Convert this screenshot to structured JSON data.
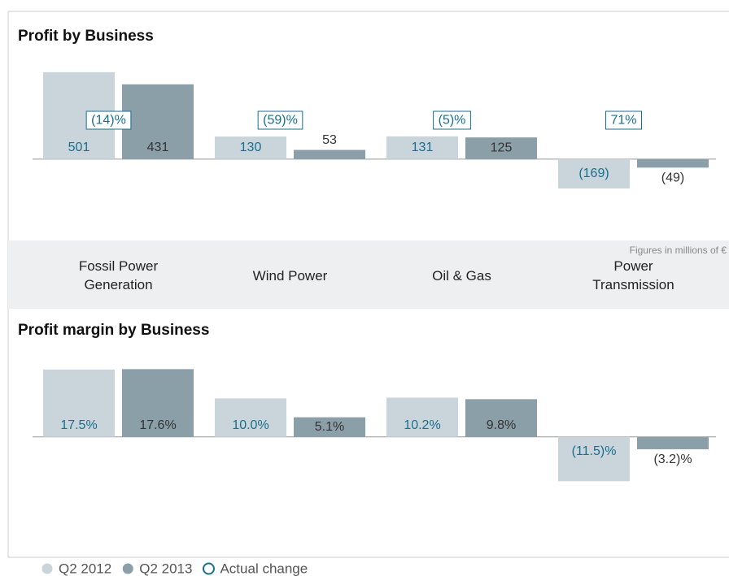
{
  "chart_data": [
    {
      "type": "bar",
      "title": "Profit by Business",
      "annotation": "Figures in millions of €",
      "categories": [
        "Fossil Power Generation",
        "Wind Power",
        "Oil & Gas",
        "Power Transmission"
      ],
      "ylim": [
        -450,
        650
      ],
      "series": [
        {
          "name": "Q2 2012",
          "color": "#c9d5db",
          "label_color": "#1a6e8e",
          "values": [
            501,
            130,
            131,
            -169
          ],
          "value_labels": [
            "501",
            "130",
            "131",
            "(169)"
          ]
        },
        {
          "name": "Q2 2013",
          "color": "#8a9fa8",
          "label_color": "#333333",
          "values": [
            431,
            53,
            125,
            -49
          ],
          "value_labels": [
            "431",
            "53",
            "125",
            "(49)"
          ]
        }
      ],
      "changes": {
        "name": "Actual change",
        "color": "#1a6e8e",
        "values": [
          -14,
          -59,
          -5,
          71
        ],
        "value_labels": [
          "(14)%",
          "(59)%",
          "(5)%",
          "71%"
        ]
      }
    },
    {
      "type": "bar",
      "title": "Profit margin by Business",
      "ylim": [
        -30,
        20
      ],
      "series": [
        {
          "color": "#c9d5db",
          "label_color": "#1a6e8e",
          "values": [
            17.5,
            10.0,
            10.2,
            -11.5
          ],
          "value_labels": [
            "17.5%",
            "10.0%",
            "10.2%",
            "(11.5)%"
          ]
        },
        {
          "color": "#8a9fa8",
          "label_color": "#333333",
          "values": [
            17.6,
            5.1,
            9.8,
            -3.2
          ],
          "value_labels": [
            "17.6%",
            "5.1%",
            "9.8%",
            "(3.2)%"
          ]
        }
      ]
    }
  ]
}
